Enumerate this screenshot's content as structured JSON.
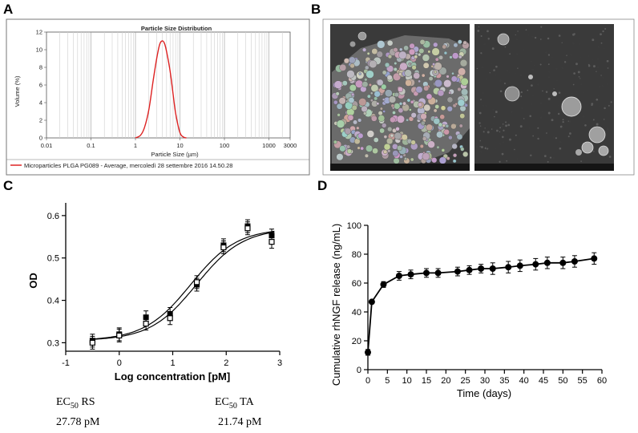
{
  "panels": {
    "a": "A",
    "b": "B",
    "c": "C",
    "d": "D"
  },
  "chart_data": [
    {
      "panel": "A",
      "type": "line",
      "title": "Particle Size Distribution",
      "xlabel": "Particle Size (µm)",
      "ylabel": "Volume (%)",
      "xscale": "log",
      "xlim": [
        0.01,
        3000
      ],
      "ylim": [
        0,
        12
      ],
      "xticks": [
        "0.01",
        "0.1",
        "1",
        "10",
        "100",
        "1000",
        "3000"
      ],
      "yticks": [
        "0",
        "2",
        "4",
        "6",
        "8",
        "10",
        "12"
      ],
      "legend": "Microparticles PLGA PG089 - Average, mercoledì 28 settembre 2016 14.50.28",
      "series": [
        {
          "name": "Microparticles PLGA PG089 - Average",
          "color": "#dd2222",
          "x": [
            1.0,
            1.3,
            1.6,
            2.0,
            2.5,
            3.0,
            3.5,
            4.0,
            4.5,
            5.0,
            6.0,
            7.0,
            8.0,
            10.0,
            12.0,
            14.0
          ],
          "y": [
            0.0,
            0.3,
            1.2,
            3.2,
            6.5,
            9.0,
            10.6,
            11.0,
            10.7,
            9.8,
            7.6,
            5.0,
            2.8,
            0.6,
            0.1,
            0.0
          ]
        }
      ]
    },
    {
      "panel": "C",
      "type": "scatter",
      "xlabel": "Log concentration [pM]",
      "ylabel": "OD",
      "xlim": [
        -1,
        3
      ],
      "ylim": [
        0.28,
        0.63
      ],
      "xticks": [
        "-1",
        "0",
        "1",
        "2",
        "3"
      ],
      "yticks": [
        "0.3",
        "0.4",
        "0.5",
        "0.6"
      ],
      "series": [
        {
          "name": "RS",
          "marker": "filled",
          "x": [
            -0.5,
            0.0,
            0.5,
            0.95,
            1.45,
            1.95,
            2.4,
            2.85
          ],
          "y": [
            0.305,
            0.32,
            0.36,
            0.368,
            0.437,
            0.53,
            0.575,
            0.553
          ]
        },
        {
          "name": "TA",
          "marker": "open",
          "x": [
            -0.5,
            0.0,
            0.5,
            0.95,
            1.45,
            1.95,
            2.4,
            2.85
          ],
          "y": [
            0.3,
            0.317,
            0.345,
            0.358,
            0.443,
            0.525,
            0.57,
            0.538
          ]
        }
      ],
      "fits": [
        {
          "name": "RS fit",
          "bottom": 0.305,
          "top": 0.57,
          "log_ec50": 1.4438
        },
        {
          "name": "TA fit",
          "bottom": 0.305,
          "top": 0.57,
          "log_ec50": 1.3372
        }
      ],
      "annotations": [
        {
          "label": "EC",
          "sub": "50",
          "tag": " RS",
          "value": "27.78 pM"
        },
        {
          "label": "EC",
          "sub": "50",
          "tag": " TA",
          "value": "21.74 pM"
        }
      ]
    },
    {
      "panel": "D",
      "type": "line",
      "xlabel": "Time (days)",
      "ylabel": "Cumulative rhNGF release (ng/mL)",
      "xlim": [
        0,
        60
      ],
      "ylim": [
        0,
        100
      ],
      "xticks": [
        "0",
        "5",
        "10",
        "15",
        "20",
        "25",
        "30",
        "35",
        "40",
        "45",
        "50",
        "55",
        "60"
      ],
      "yticks": [
        "0",
        "20",
        "40",
        "60",
        "80",
        "100"
      ],
      "series": [
        {
          "name": "Cumulative rhNGF release",
          "x": [
            0,
            1,
            4,
            8,
            11,
            15,
            18,
            23,
            26,
            29,
            32,
            36,
            39,
            43,
            46,
            50,
            53,
            58
          ],
          "y": [
            12,
            47,
            59,
            65,
            66,
            67,
            67,
            68,
            69,
            70,
            70,
            71,
            72,
            73,
            74,
            74,
            75,
            77
          ],
          "err": [
            2,
            1,
            2,
            3,
            3,
            3,
            3,
            3,
            3,
            3,
            4,
            4,
            4,
            4,
            4,
            4,
            4,
            4
          ]
        }
      ]
    }
  ]
}
